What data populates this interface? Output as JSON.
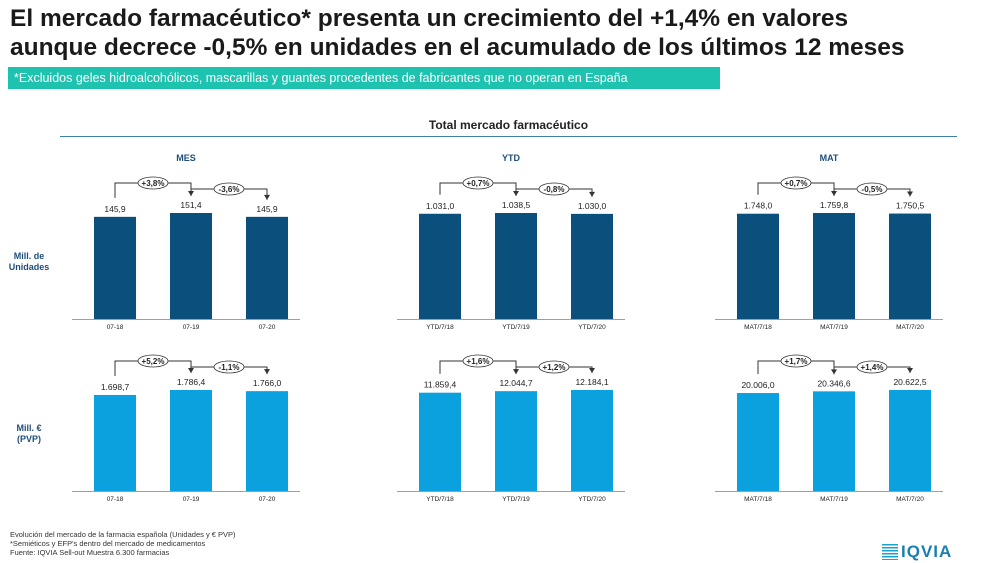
{
  "title_line1": "El mercado farmacéutico* presenta un crecimiento del +1,4% en valores",
  "title_line2": "aunque decrece -0,5% en unidades en el acumulado de los últimos 12 meses",
  "banner": "*Excluidos geles hidroalcohólicos, mascarillas y guantes procedentes de fabricantes que no operan en España",
  "section_title": "Total mercado farmacéutico",
  "row_labels": {
    "units": [
      "Mill. de",
      "Unidades"
    ],
    "values": [
      "Mill. €",
      "(PVP)"
    ]
  },
  "footer": [
    "Evolución del mercado de la farmacia española (Unidades y € PVP)",
    "*Semiéticos y EFP's dentro del mercado de medicamentos",
    "Fuente: IQVIA Sell-out Muestra 6.300 farmacias"
  ],
  "logo_text": "IQVIA",
  "colors": {
    "units_bar": "#0b4f7c",
    "values_bar": "#0aa1de",
    "axis": "#9aa0a6",
    "text": "#222222",
    "banner": "#1ec3b0"
  },
  "chart_data": [
    {
      "type": "bar",
      "title": "MES",
      "row": "units",
      "categories": [
        "07-18",
        "07-19",
        "07-20"
      ],
      "values": [
        145.9,
        151.4,
        145.9
      ],
      "labels": [
        "145,9",
        "151,4",
        "145,9"
      ],
      "changes": [
        "+3,8%",
        "-3,6%"
      ]
    },
    {
      "type": "bar",
      "title": "YTD",
      "row": "units",
      "categories": [
        "YTD/7/18",
        "YTD/7/19",
        "YTD/7/20"
      ],
      "values": [
        1031.0,
        1038.5,
        1030.0
      ],
      "labels": [
        "1.031,0",
        "1.038,5",
        "1.030,0"
      ],
      "changes": [
        "+0,7%",
        "-0,8%"
      ]
    },
    {
      "type": "bar",
      "title": "MAT",
      "row": "units",
      "categories": [
        "MAT/7/18",
        "MAT/7/19",
        "MAT/7/20"
      ],
      "values": [
        1748.0,
        1759.8,
        1750.5
      ],
      "labels": [
        "1.748,0",
        "1.759,8",
        "1.750,5"
      ],
      "changes": [
        "+0,7%",
        "-0,5%"
      ]
    },
    {
      "type": "bar",
      "title": "",
      "row": "values",
      "categories": [
        "07-18",
        "07-19",
        "07-20"
      ],
      "values": [
        1698.7,
        1786.4,
        1766.0
      ],
      "labels": [
        "1.698,7",
        "1.786,4",
        "1.766,0"
      ],
      "changes": [
        "+5,2%",
        "-1,1%"
      ]
    },
    {
      "type": "bar",
      "title": "",
      "row": "values",
      "categories": [
        "YTD/7/18",
        "YTD/7/19",
        "YTD/7/20"
      ],
      "values": [
        11859.4,
        12044.7,
        12184.1
      ],
      "labels": [
        "11.859,4",
        "12.044,7",
        "12.184,1"
      ],
      "changes": [
        "+1,6%",
        "+1,2%"
      ]
    },
    {
      "type": "bar",
      "title": "",
      "row": "values",
      "categories": [
        "MAT/7/18",
        "MAT/7/19",
        "MAT/7/20"
      ],
      "values": [
        20006.0,
        20346.6,
        20622.5
      ],
      "labels": [
        "20.006,0",
        "20.346,6",
        "20.622,5"
      ],
      "changes": [
        "+1,7%",
        "+1,4%"
      ]
    }
  ]
}
